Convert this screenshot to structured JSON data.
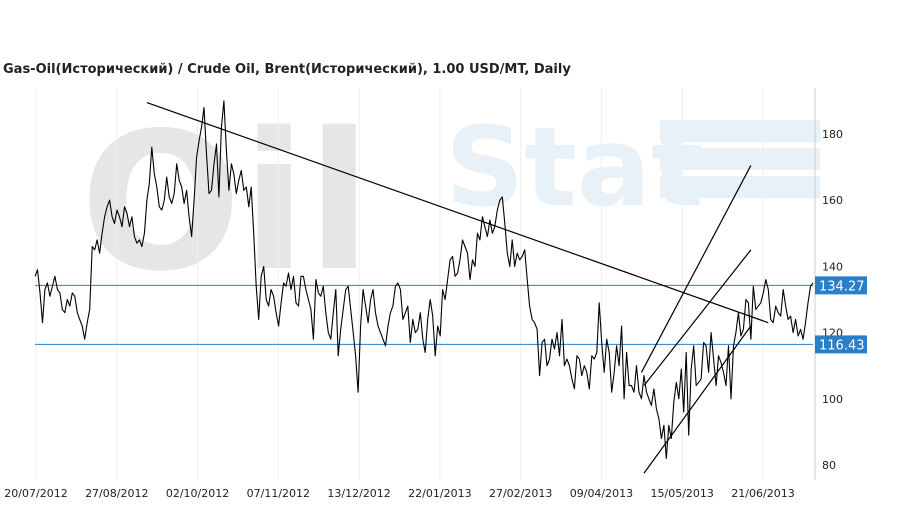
{
  "chart_data": {
    "type": "line",
    "title": "Gas-Oil(Исторический) / Crude Oil, Brent(Исторический), 1.00 USD/MT, Daily",
    "xlabel": "",
    "ylabel": "",
    "ylim": [
      75,
      193
    ],
    "yticks": [
      80,
      100,
      120,
      140,
      160,
      180
    ],
    "x_tick_labels": [
      "20/07/2012",
      "27/08/2012",
      "02/10/2012",
      "07/11/2012",
      "13/12/2012",
      "22/01/2013",
      "27/02/2013",
      "09/04/2013",
      "15/05/2013",
      "21/06/2013"
    ],
    "grid": {
      "vertical": true,
      "horizontal": false
    },
    "series": [
      {
        "values": [
          137,
          139,
          132,
          123,
          133,
          135,
          131,
          134,
          137,
          133,
          132,
          127,
          126,
          130,
          128,
          132,
          131,
          126,
          124,
          122,
          118,
          123,
          127,
          146,
          145,
          148,
          144,
          150,
          155,
          158,
          160,
          155,
          153,
          157,
          155,
          152,
          158,
          156,
          152,
          155,
          149,
          147,
          148,
          146,
          150,
          160,
          165,
          176,
          168,
          164,
          158,
          157,
          160,
          167,
          161,
          159,
          162,
          171,
          166,
          164,
          159,
          163,
          155,
          149,
          160,
          173,
          178,
          182,
          188,
          174,
          162,
          163,
          171,
          177,
          161,
          182,
          190,
          175,
          163,
          171,
          168,
          162,
          166,
          169,
          163,
          164,
          158,
          164,
          150,
          134,
          124,
          137,
          140,
          130,
          128,
          133,
          131,
          126,
          122,
          129,
          135,
          134,
          138,
          133,
          137,
          129,
          128,
          137,
          137,
          133,
          130,
          127,
          118,
          136,
          132,
          131,
          134,
          126,
          120,
          118,
          126,
          133,
          113,
          121,
          127,
          133,
          134,
          127,
          120,
          113,
          102,
          122,
          133,
          128,
          123,
          130,
          133,
          126,
          122,
          120,
          118,
          116,
          122,
          126,
          128,
          134,
          135,
          133,
          124,
          126,
          128,
          117,
          124,
          120,
          121,
          126,
          118,
          114,
          124,
          130,
          125,
          113,
          122,
          119,
          133,
          130,
          136,
          142,
          143,
          137,
          138,
          142,
          148,
          146,
          144,
          136,
          142,
          140,
          150,
          148,
          155,
          152,
          149,
          154,
          150,
          152,
          157,
          160,
          161,
          153,
          144,
          140,
          148,
          140,
          144,
          142,
          143,
          145,
          136,
          128,
          124,
          123,
          121,
          107,
          117,
          118,
          110,
          112,
          118,
          115,
          120,
          113,
          124,
          110,
          112,
          110,
          106,
          103,
          113,
          112,
          107,
          110,
          108,
          103,
          113,
          112,
          114,
          129,
          117,
          108,
          118,
          114,
          102,
          108,
          116,
          110,
          122,
          100,
          114,
          104,
          104,
          102,
          110,
          102,
          100,
          107,
          102,
          100,
          98,
          103,
          97,
          94,
          88,
          92,
          82,
          92,
          88,
          99,
          105,
          100,
          109,
          96,
          114,
          89,
          109,
          116,
          104,
          105,
          106,
          117,
          116,
          108,
          120,
          112,
          104,
          113,
          111,
          108,
          104,
          116,
          100,
          116,
          120,
          126,
          119,
          121,
          130,
          129,
          118,
          134,
          127,
          128,
          129,
          132,
          136,
          133,
          124,
          123,
          128,
          126,
          125,
          133,
          128,
          124,
          125,
          120,
          124,
          119,
          121,
          118,
          123,
          129,
          134,
          135
        ]
      }
    ],
    "horizontal_levels": [
      {
        "value": 134.27,
        "label": "134.27",
        "color": "#2a7fc9"
      },
      {
        "value": 116.43,
        "label": "116.43",
        "color": "#2a7fc9"
      }
    ],
    "trendlines": [
      {
        "from": [
          45,
          189.5
        ],
        "to": [
          295,
          123
        ]
      },
      {
        "from": [
          244,
          108
        ],
        "to": [
          288,
          170.5
        ]
      },
      {
        "from": [
          245,
          104
        ],
        "to": [
          288,
          145
        ]
      },
      {
        "from": [
          245,
          77.5
        ],
        "to": [
          288,
          122
        ]
      }
    ],
    "watermark": {
      "left_text": "Oil",
      "right_text": "Stat"
    },
    "colors": {
      "series": "#000000",
      "trendline": "#000000",
      "level": "#2a7fc9",
      "grid": "#eeeeee",
      "axis": "#cccccc"
    }
  }
}
